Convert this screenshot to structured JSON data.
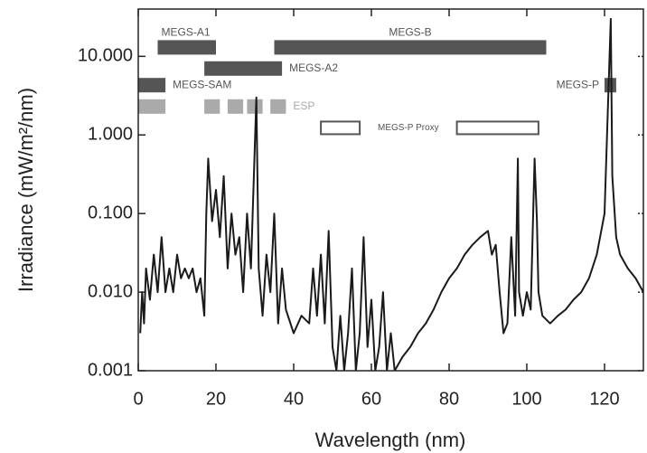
{
  "chart_data": {
    "type": "line",
    "x_label": "Wavelength (nm)",
    "y_label": "Irradiance (mW/m²/nm)",
    "log_y": true,
    "xlim": [
      0,
      130
    ],
    "ylim": [
      0.001,
      40
    ],
    "xticks": [
      0,
      20,
      40,
      60,
      80,
      100,
      120
    ],
    "yticks": [
      {
        "value": 0.001,
        "label": "0.001"
      },
      {
        "value": 0.01,
        "label": "0.010"
      },
      {
        "value": 0.1,
        "label": "0.100"
      },
      {
        "value": 1,
        "label": "1.000"
      },
      {
        "value": 10,
        "label": "10.000"
      }
    ],
    "series": [
      {
        "name": "Irradiance",
        "color": "#1a1a1a",
        "x": [
          0.5,
          1,
          1.5,
          2,
          3,
          4,
          5,
          6,
          7,
          8,
          9,
          10,
          11,
          12,
          13,
          14,
          15,
          16,
          17,
          17.5,
          18,
          19,
          20,
          21,
          22,
          23,
          24,
          25,
          26,
          27,
          28,
          29,
          30.4,
          31,
          32,
          33,
          34,
          35,
          36,
          37,
          38,
          40,
          42,
          44,
          45,
          46,
          47,
          48,
          49,
          50,
          51,
          52,
          53,
          54,
          55,
          56,
          57,
          58,
          59,
          60,
          61,
          62,
          63,
          64,
          65,
          66,
          68,
          70,
          72,
          74,
          76,
          78,
          80,
          82,
          84,
          86,
          88,
          90,
          91,
          92,
          93,
          94,
          95,
          96,
          97,
          97.7,
          98,
          99,
          100,
          101,
          102,
          102.6,
          103,
          104,
          106,
          108,
          110,
          112,
          114,
          116,
          118,
          120,
          121.6,
          122,
          123,
          124,
          126,
          128,
          130
        ],
        "values": [
          0.003,
          0.01,
          0.004,
          0.02,
          0.008,
          0.03,
          0.01,
          0.05,
          0.01,
          0.02,
          0.01,
          0.03,
          0.015,
          0.02,
          0.015,
          0.02,
          0.01,
          0.015,
          0.005,
          0.1,
          0.5,
          0.08,
          0.2,
          0.05,
          0.3,
          0.02,
          0.1,
          0.03,
          0.05,
          0.01,
          0.1,
          0.02,
          3,
          0.02,
          0.005,
          0.03,
          0.01,
          0.1,
          0.004,
          0.02,
          0.006,
          0.003,
          0.005,
          0.004,
          0.02,
          0.005,
          0.03,
          0.004,
          0.06,
          0.002,
          0.001,
          0.005,
          0.001,
          0.003,
          0.02,
          0.001,
          0.003,
          0.05,
          0.002,
          0.008,
          0.001,
          0.002,
          0.01,
          0.001,
          0.003,
          0.001,
          0.0015,
          0.002,
          0.003,
          0.004,
          0.006,
          0.01,
          0.015,
          0.02,
          0.03,
          0.04,
          0.05,
          0.06,
          0.03,
          0.04,
          0.01,
          0.003,
          0.004,
          0.05,
          0.005,
          0.5,
          0.01,
          0.005,
          0.01,
          0.006,
          0.5,
          0.08,
          0.01,
          0.005,
          0.004,
          0.005,
          0.006,
          0.008,
          0.01,
          0.015,
          0.03,
          0.1,
          30,
          0.3,
          0.05,
          0.03,
          0.02,
          0.015,
          0.01
        ]
      }
    ],
    "instruments": [
      {
        "name": "MEGS-A1",
        "segments": [
          [
            5,
            20
          ]
        ],
        "level": 13,
        "style": "filled",
        "color": "#555555",
        "label_side": "above"
      },
      {
        "name": "MEGS-B",
        "segments": [
          [
            35,
            105
          ]
        ],
        "level": 13,
        "style": "filled",
        "color": "#555555",
        "label_side": "above"
      },
      {
        "name": "MEGS-A2",
        "segments": [
          [
            17,
            37
          ]
        ],
        "level": 7,
        "style": "filled",
        "color": "#555555",
        "label_side": "right"
      },
      {
        "name": "MEGS-SAM",
        "segments": [
          [
            0,
            7
          ]
        ],
        "level": 4.3,
        "style": "filled",
        "color": "#555555",
        "label_side": "right"
      },
      {
        "name": "MEGS-P",
        "segments": [
          [
            120,
            123
          ]
        ],
        "level": 4.3,
        "style": "filled",
        "color": "#555555",
        "label_side": "left"
      },
      {
        "name": "ESP",
        "segments": [
          [
            0,
            7
          ],
          [
            17,
            21
          ],
          [
            23,
            27
          ],
          [
            28,
            32
          ],
          [
            34,
            38
          ]
        ],
        "level": 2.3,
        "style": "filled",
        "color": "#aaaaaa",
        "label_side": "right"
      },
      {
        "name": "MEGS-P Proxy",
        "segments": [
          [
            47,
            57
          ],
          [
            82,
            103
          ]
        ],
        "level": 1.23,
        "style": "outline",
        "color": "#555555",
        "label_side": "between"
      }
    ]
  }
}
